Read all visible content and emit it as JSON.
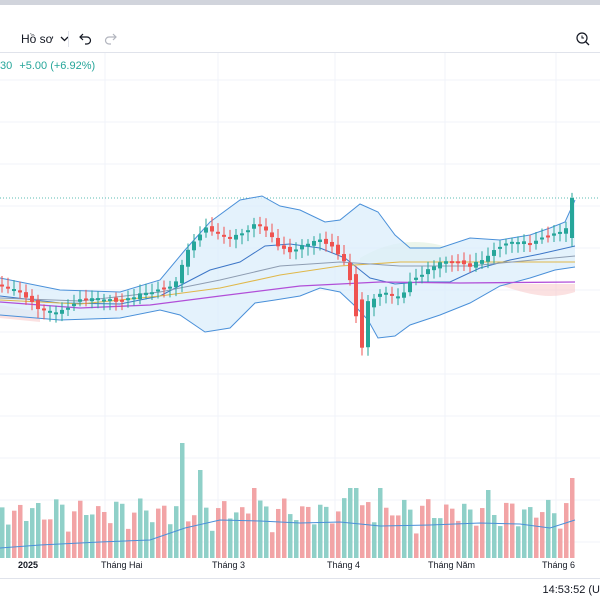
{
  "toolbar": {
    "profile_label": "Hồ sơ",
    "dropdown_icon": "chevron-down-icon",
    "undo_icon": "undo-icon",
    "redo_icon": "redo-icon",
    "zoom_icon": "magnifier-clock-icon"
  },
  "status": {
    "price_fragment": "30",
    "change": "+5.00 (+6.92%)"
  },
  "x_axis_labels": [
    "2025",
    "Tháng Hai",
    "Tháng 3",
    "Tháng 4",
    "Tháng Năm",
    "Tháng 6"
  ],
  "clock": "14:53:52 (U",
  "colors": {
    "up": "#26a69a",
    "down": "#ef5350",
    "volume_up": "#8fd0c8",
    "volume_down": "#f2a4a6",
    "bollinger": "#4a90d9",
    "bollinger_fill": "#dbeefb",
    "ma_purple": "#b14fd8",
    "ma_orange": "#e0b84a",
    "ma_green": "#7cbf7c"
  },
  "chart_data": {
    "type": "candlestick",
    "x_labels": [
      "2025",
      "Tháng Hai",
      "Tháng 3",
      "Tháng 4",
      "Tháng Năm",
      "Tháng 6"
    ],
    "volume_note": "Daily volume bars with moving average line"
  }
}
